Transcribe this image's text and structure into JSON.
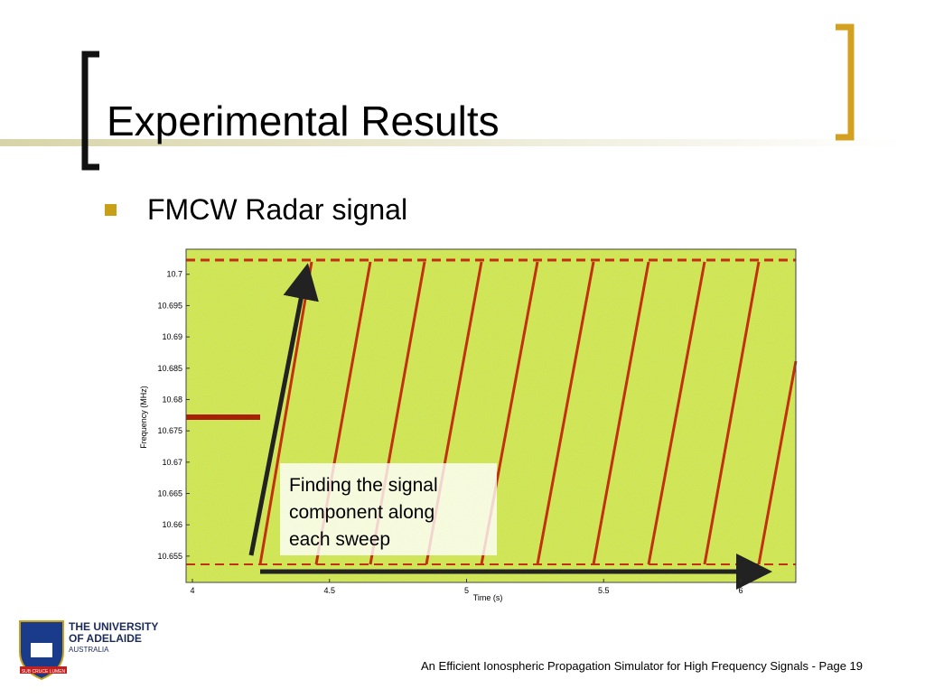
{
  "slide": {
    "title": "Experimental Results",
    "bullets": [
      "FMCW Radar signal"
    ],
    "footer": "An Efficient Ionospheric Propagation Simulator for High Frequency Signals - Page 19"
  },
  "logo": {
    "lines": [
      "THE UNIVERSITY",
      "OF ADELAIDE",
      "AUSTRALIA"
    ],
    "motto": "SUB CRUCE LUMEN"
  },
  "chart_data": {
    "type": "spectrogram",
    "x_label": "Time (s)",
    "y_label": "Frequency (MHz)",
    "xlim": [
      3.977,
      6.201
    ],
    "ylim": [
      10.6508,
      10.704
    ],
    "xticks": [
      4,
      4.5,
      5,
      5.5,
      6
    ],
    "yticks": [
      10.655,
      10.66,
      10.665,
      10.67,
      10.675,
      10.68,
      10.685,
      10.69,
      10.695,
      10.7
    ],
    "annotation": [
      "Finding the signal",
      "component along",
      "each sweep"
    ]
  }
}
